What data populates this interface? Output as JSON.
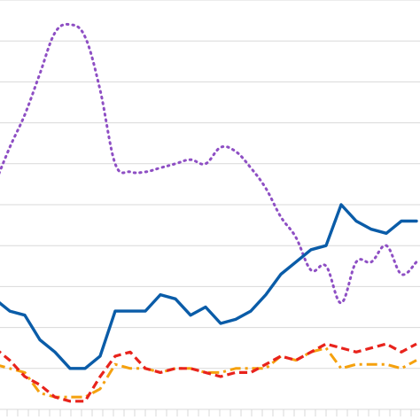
{
  "chart_data": {
    "type": "line",
    "title": "",
    "xlabel": "",
    "ylabel": "",
    "grid": true,
    "legend": "none",
    "ylim": [
      0,
      10
    ],
    "xlim": [
      0,
      40
    ],
    "x": [
      0,
      1,
      2,
      3,
      4,
      5,
      6,
      7,
      8,
      9,
      10,
      11,
      12,
      13,
      14,
      15,
      16,
      17,
      18,
      19,
      20,
      21,
      22,
      23,
      24,
      25,
      26,
      27,
      28,
      29,
      30,
      31,
      32,
      33,
      34,
      35,
      36,
      37,
      38,
      39,
      40
    ],
    "series": [
      {
        "color": "#8e4fc4",
        "style": "dotted",
        "values": [
          5.5,
          6.4,
          7.2,
          8.2,
          9.2,
          9.4,
          9.1,
          7.8,
          6.0,
          5.8,
          5.8,
          5.9,
          6.0,
          6.1,
          6.0,
          6.4,
          6.3,
          5.9,
          5.4,
          4.7,
          4.2,
          3.4,
          3.5,
          2.6,
          3.6,
          3.6,
          4.0,
          3.3,
          3.6,
          null,
          null,
          null,
          null,
          null,
          null,
          null,
          null,
          null,
          null,
          null,
          null
        ]
      },
      {
        "color": "#0a5ca8",
        "style": "solid",
        "values": [
          2.7,
          2.4,
          2.3,
          1.7,
          1.4,
          1.0,
          1.0,
          1.3,
          2.4,
          2.4,
          2.4,
          2.8,
          2.7,
          2.3,
          2.5,
          2.1,
          2.2,
          2.4,
          2.8,
          3.3,
          3.6,
          3.9,
          4.0,
          5.0,
          4.6,
          4.4,
          4.3,
          4.6,
          4.6,
          null,
          null,
          null,
          null,
          null,
          null,
          null,
          null,
          null,
          null,
          null,
          null
        ]
      },
      {
        "color": "#e8231c",
        "style": "dashed",
        "values": [
          1.5,
          1.2,
          0.8,
          0.6,
          0.3,
          0.2,
          0.2,
          0.8,
          1.3,
          1.4,
          1.0,
          0.9,
          1.0,
          1.0,
          0.9,
          0.8,
          0.9,
          0.9,
          1.1,
          1.3,
          1.2,
          1.4,
          1.6,
          1.5,
          1.4,
          1.5,
          1.6,
          1.4,
          1.6,
          null,
          null,
          null,
          null,
          null,
          null,
          null,
          null,
          null,
          null,
          null,
          null
        ]
      },
      {
        "color": "#f5a10e",
        "style": "dashdot",
        "values": [
          1.1,
          1.0,
          0.9,
          0.4,
          0.3,
          0.3,
          0.3,
          0.5,
          1.1,
          1.0,
          1.0,
          0.9,
          1.0,
          1.0,
          0.9,
          0.9,
          1.0,
          1.0,
          1.0,
          1.3,
          1.2,
          1.4,
          1.5,
          1.0,
          1.1,
          1.1,
          1.1,
          1.0,
          1.2,
          null,
          null,
          null,
          null,
          null,
          null,
          null,
          null,
          null,
          null,
          null,
          null
        ]
      }
    ]
  }
}
